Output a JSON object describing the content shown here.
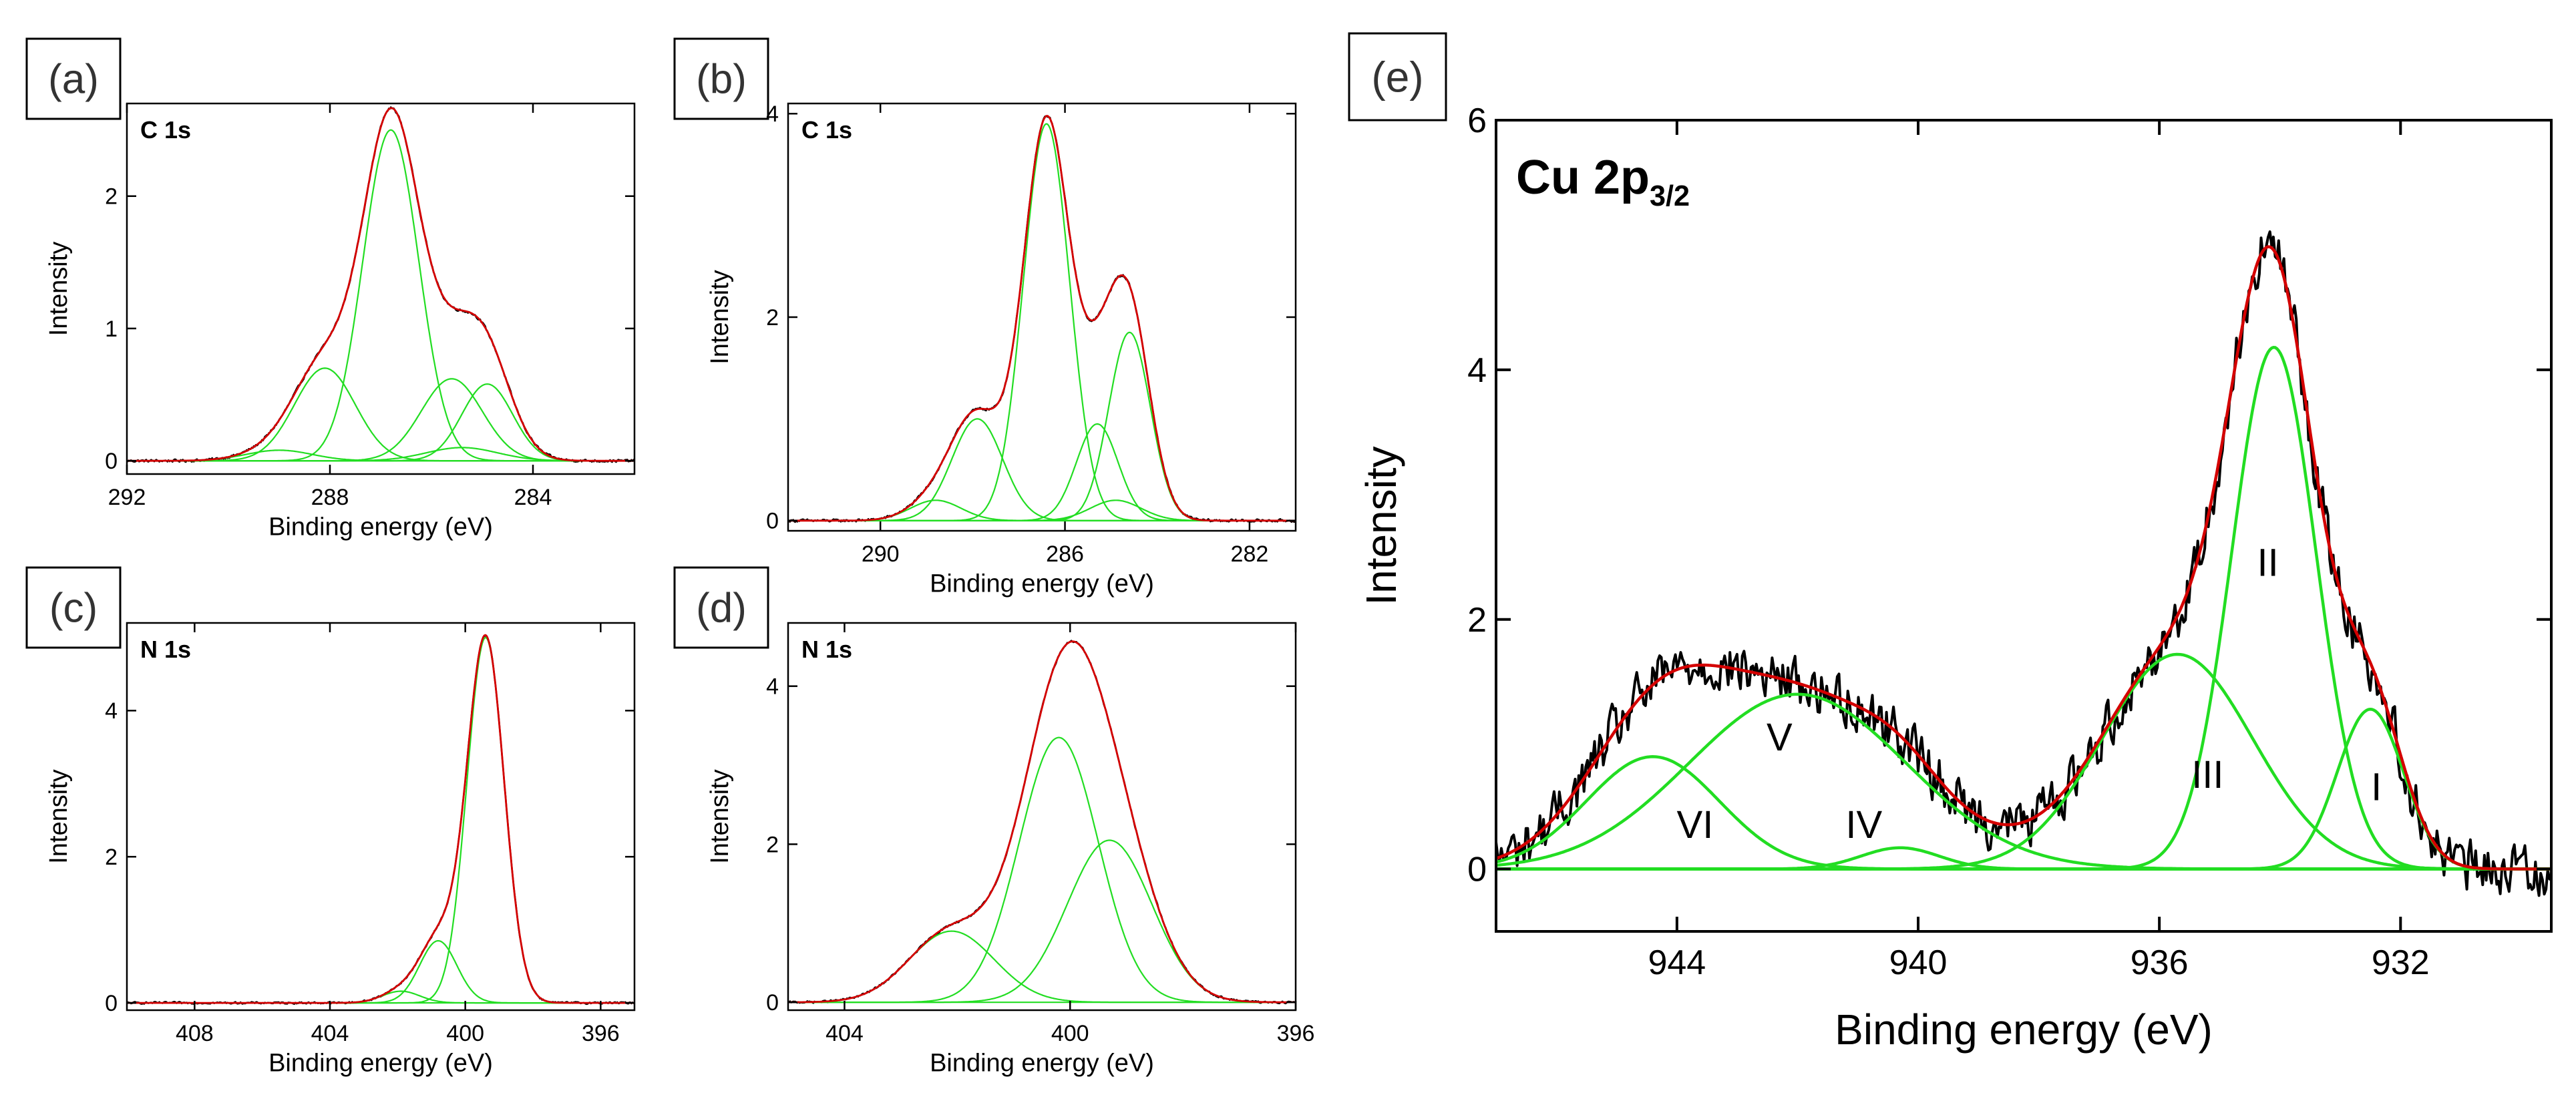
{
  "colors": {
    "measured": "#000000",
    "envelope": "#d40000",
    "component": "#22dd22",
    "axis": "#000000"
  },
  "chart_data": [
    {
      "id": "a",
      "type": "line",
      "panel_label": "(a)",
      "title": "C 1s",
      "xlabel": "Binding energy (eV)",
      "ylabel": "Intensity",
      "xlim": [
        292,
        282
      ],
      "ylim": [
        -0.1,
        2.7
      ],
      "xticks": [
        {
          "v": 292,
          "label": "292"
        },
        {
          "v": 288,
          "label": "288"
        },
        {
          "v": 284,
          "label": "284"
        }
      ],
      "yticks": [
        {
          "v": 0,
          "label": "0"
        },
        {
          "v": 1,
          "label": "1"
        },
        {
          "v": 2,
          "label": "2"
        }
      ],
      "components": [
        {
          "center": 289.0,
          "height": 0.08,
          "width": 0.65
        },
        {
          "center": 288.1,
          "height": 0.7,
          "width": 0.6
        },
        {
          "center": 286.8,
          "height": 2.5,
          "width": 0.55
        },
        {
          "center": 285.6,
          "height": 0.62,
          "width": 0.6
        },
        {
          "center": 285.4,
          "height": 0.1,
          "width": 0.7
        },
        {
          "center": 284.9,
          "height": 0.58,
          "width": 0.5
        }
      ],
      "noise": 0.015,
      "component_labels": []
    },
    {
      "id": "b",
      "type": "line",
      "panel_label": "(b)",
      "title": "C 1s",
      "xlabel": "Binding energy (eV)",
      "ylabel": "Intensity",
      "xlim": [
        292,
        281
      ],
      "ylim": [
        -0.1,
        4.1
      ],
      "xticks": [
        {
          "v": 290,
          "label": "290"
        },
        {
          "v": 286,
          "label": "286"
        },
        {
          "v": 282,
          "label": "282"
        }
      ],
      "yticks": [
        {
          "v": 0,
          "label": "0"
        },
        {
          "v": 2,
          "label": "2"
        },
        {
          "v": 4,
          "label": "4"
        }
      ],
      "components": [
        {
          "center": 288.8,
          "height": 0.2,
          "width": 0.55
        },
        {
          "center": 287.9,
          "height": 1.0,
          "width": 0.55
        },
        {
          "center": 286.4,
          "height": 3.9,
          "width": 0.5
        },
        {
          "center": 285.3,
          "height": 0.95,
          "width": 0.45
        },
        {
          "center": 284.9,
          "height": 0.2,
          "width": 0.55
        },
        {
          "center": 284.6,
          "height": 1.85,
          "width": 0.45
        }
      ],
      "noise": 0.02,
      "component_labels": []
    },
    {
      "id": "c",
      "type": "line",
      "panel_label": "(c)",
      "title": "N 1s",
      "xlabel": "Binding energy (eV)",
      "ylabel": "Intensity",
      "xlim": [
        410,
        395
      ],
      "ylim": [
        -0.1,
        5.2
      ],
      "xticks": [
        {
          "v": 408,
          "label": "408"
        },
        {
          "v": 404,
          "label": "404"
        },
        {
          "v": 400,
          "label": "400"
        },
        {
          "v": 396,
          "label": "396"
        }
      ],
      "yticks": [
        {
          "v": 0,
          "label": "0"
        },
        {
          "v": 2,
          "label": "2"
        },
        {
          "v": 4,
          "label": "4"
        }
      ],
      "components": [
        {
          "center": 401.9,
          "height": 0.16,
          "width": 0.55
        },
        {
          "center": 400.8,
          "height": 0.85,
          "width": 0.55
        },
        {
          "center": 399.4,
          "height": 5.0,
          "width": 0.55
        }
      ],
      "noise": 0.02,
      "component_labels": []
    },
    {
      "id": "d",
      "type": "line",
      "panel_label": "(d)",
      "title": "N 1s",
      "xlabel": "Binding energy (eV)",
      "ylabel": "Intensity",
      "xlim": [
        405,
        396
      ],
      "ylim": [
        -0.1,
        4.8
      ],
      "xticks": [
        {
          "v": 404,
          "label": "404"
        },
        {
          "v": 400,
          "label": "400"
        },
        {
          "v": 396,
          "label": "396"
        }
      ],
      "yticks": [
        {
          "v": 0,
          "label": "0"
        },
        {
          "v": 2,
          "label": "2"
        },
        {
          "v": 4,
          "label": "4"
        }
      ],
      "components": [
        {
          "center": 402.1,
          "height": 0.9,
          "width": 0.75
        },
        {
          "center": 400.2,
          "height": 3.35,
          "width": 0.7
        },
        {
          "center": 399.3,
          "height": 2.05,
          "width": 0.75
        }
      ],
      "noise": 0.02,
      "component_labels": []
    },
    {
      "id": "e",
      "type": "line",
      "panel_label": "(e)",
      "title": "Cu 2p",
      "title_subscript": "3/2",
      "xlabel": "Binding energy (eV)",
      "ylabel": "Intensity",
      "xlim": [
        947,
        929.5
      ],
      "ylim": [
        -0.5,
        6.0
      ],
      "xticks": [
        {
          "v": 944,
          "label": "944"
        },
        {
          "v": 940,
          "label": "940"
        },
        {
          "v": 936,
          "label": "936"
        },
        {
          "v": 932,
          "label": "932"
        }
      ],
      "yticks": [
        {
          "v": 0,
          "label": "0"
        },
        {
          "v": 2,
          "label": "2"
        },
        {
          "v": 4,
          "label": "4"
        },
        {
          "v": 6,
          "label": "6"
        }
      ],
      "components": [
        {
          "center": 944.4,
          "height": 0.9,
          "width": 1.1
        },
        {
          "center": 942.0,
          "height": 1.4,
          "width": 1.8
        },
        {
          "center": 940.3,
          "height": 0.17,
          "width": 0.65
        },
        {
          "center": 935.7,
          "height": 1.72,
          "width": 1.25
        },
        {
          "center": 934.1,
          "height": 4.18,
          "width": 0.7
        },
        {
          "center": 932.5,
          "height": 1.28,
          "width": 0.55
        }
      ],
      "noise": 0.18,
      "component_labels": [
        {
          "text": "VI",
          "x": 943.7,
          "y": 0.25
        },
        {
          "text": "V",
          "x": 942.3,
          "y": 0.95
        },
        {
          "text": "IV",
          "x": 940.9,
          "y": 0.25
        },
        {
          "text": "III",
          "x": 935.2,
          "y": 0.65
        },
        {
          "text": "II",
          "x": 934.2,
          "y": 2.35
        },
        {
          "text": "I",
          "x": 932.4,
          "y": 0.55
        }
      ]
    }
  ]
}
